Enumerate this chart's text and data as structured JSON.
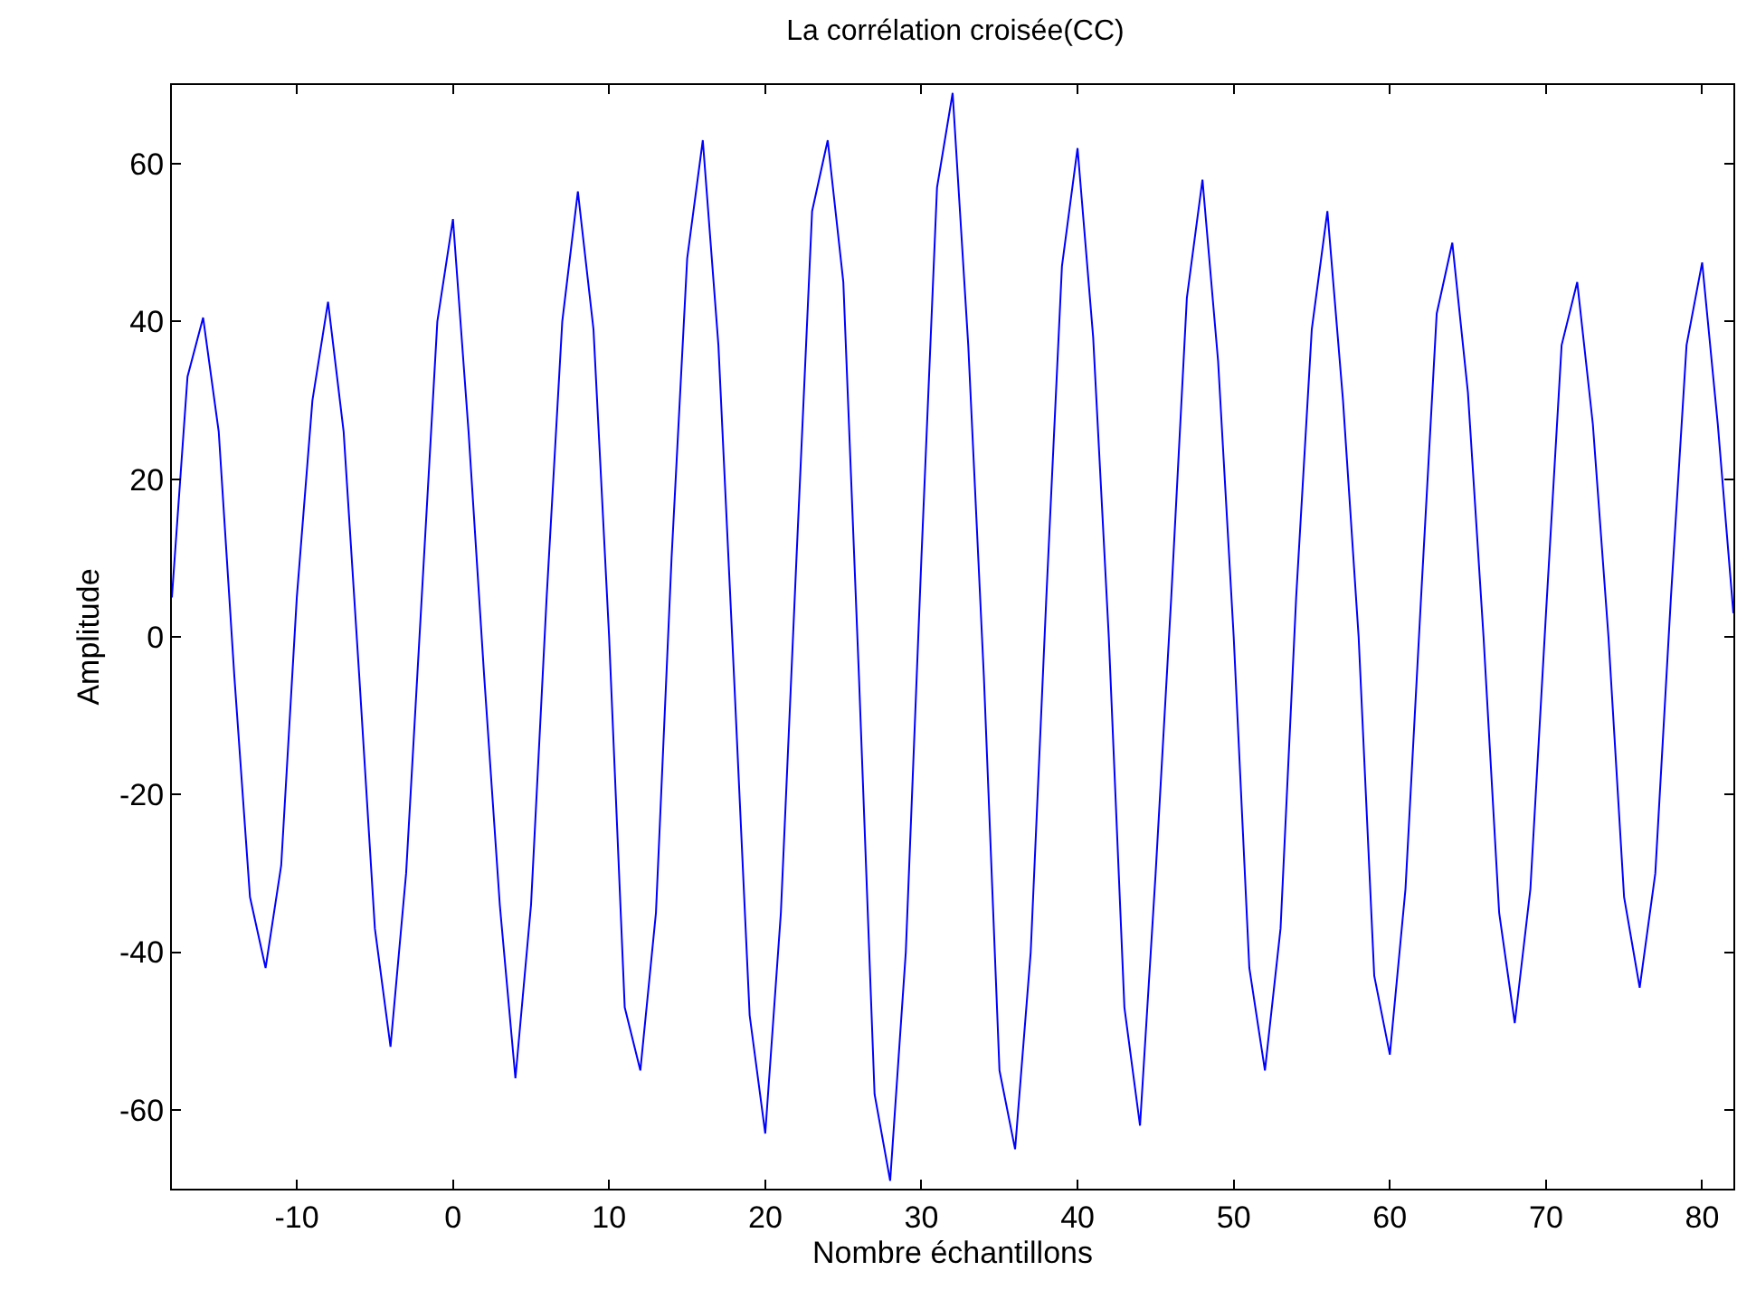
{
  "chart_data": {
    "type": "line",
    "title": "La corrélation croisée(CC)",
    "xlabel": "Nombre échantillons",
    "ylabel": "Amplitude",
    "x": [
      -18,
      -17,
      -16,
      -15,
      -14,
      -13,
      -12,
      -11,
      -10,
      -9,
      -8,
      -7,
      -6,
      -5,
      -4,
      -3,
      -2,
      -1,
      0,
      1,
      2,
      3,
      4,
      5,
      6,
      7,
      8,
      9,
      10,
      11,
      12,
      13,
      14,
      15,
      16,
      17,
      18,
      19,
      20,
      21,
      22,
      23,
      24,
      25,
      26,
      27,
      28,
      29,
      30,
      31,
      32,
      33,
      34,
      35,
      36,
      37,
      38,
      39,
      40,
      41,
      42,
      43,
      44,
      45,
      46,
      47,
      48,
      49,
      50,
      51,
      52,
      53,
      54,
      55,
      56,
      57,
      58,
      59,
      60,
      61,
      62,
      63,
      64,
      65,
      66,
      67,
      68,
      69,
      70,
      71,
      72,
      73,
      74,
      75,
      76,
      77,
      78,
      79,
      80,
      81,
      82
    ],
    "series": [
      {
        "color": "#0000ff",
        "values": [
          5,
          33,
          40.5,
          26,
          -5,
          -33,
          -42,
          -29,
          5,
          30,
          42.5,
          26,
          -5,
          -37,
          -52,
          -30,
          5,
          40,
          53,
          26,
          -5,
          -34,
          -56,
          -34,
          5,
          40,
          56.5,
          39,
          0,
          -47,
          -55,
          -35,
          10,
          48,
          63,
          37,
          -5,
          -48,
          -63,
          -35,
          10,
          54,
          63,
          45,
          -5,
          -58,
          -69,
          -40,
          10,
          57,
          69,
          37,
          -5,
          -55,
          -65,
          -40,
          5,
          47,
          62,
          38,
          0,
          -47,
          -62,
          -30,
          5,
          43,
          58,
          35,
          0,
          -42,
          -55,
          -37,
          5,
          39,
          54,
          30,
          0,
          -43,
          -53,
          -32,
          5,
          41,
          50,
          31,
          0,
          -35,
          -49,
          -32,
          3,
          37,
          45,
          27,
          0,
          -33,
          -44.5,
          -30,
          5,
          37,
          47.5,
          27,
          3
        ]
      }
    ],
    "xlim": [
      -18,
      82
    ],
    "xticks": [
      -10,
      0,
      10,
      20,
      30,
      40,
      50,
      60,
      70,
      80
    ],
    "ylim": [
      -70,
      70
    ],
    "yticks": [
      -60,
      -40,
      -20,
      0,
      20,
      40,
      60
    ],
    "legend": false,
    "marker": "none",
    "line_style": "solid"
  }
}
